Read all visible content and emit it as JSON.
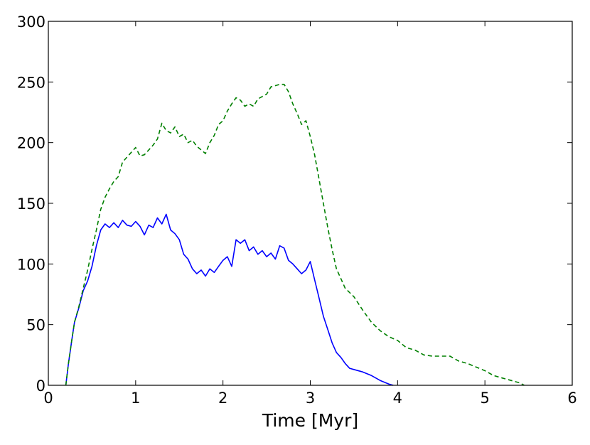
{
  "chart_data": {
    "type": "line",
    "title": "",
    "xlabel": "Time [Myr]",
    "ylabel": "",
    "xlim": [
      0,
      6
    ],
    "ylim": [
      0,
      300
    ],
    "xticks": [
      "0",
      "1",
      "2",
      "3",
      "4",
      "5",
      "6"
    ],
    "yticks": [
      "0",
      "50",
      "100",
      "150",
      "200",
      "250",
      "300"
    ],
    "grid": false,
    "legend": "none",
    "series": [
      {
        "style": "solid",
        "color": "#0000ff",
        "x": [
          0.2,
          0.23,
          0.27,
          0.3,
          0.35,
          0.4,
          0.45,
          0.5,
          0.55,
          0.6,
          0.65,
          0.7,
          0.75,
          0.8,
          0.85,
          0.9,
          0.95,
          1.0,
          1.05,
          1.1,
          1.15,
          1.2,
          1.25,
          1.3,
          1.35,
          1.4,
          1.45,
          1.5,
          1.55,
          1.6,
          1.65,
          1.7,
          1.75,
          1.8,
          1.85,
          1.9,
          1.95,
          2.0,
          2.05,
          2.1,
          2.15,
          2.2,
          2.25,
          2.3,
          2.35,
          2.4,
          2.45,
          2.5,
          2.55,
          2.6,
          2.65,
          2.7,
          2.75,
          2.8,
          2.85,
          2.9,
          2.95,
          3.0,
          3.05,
          3.1,
          3.15,
          3.2,
          3.25,
          3.3,
          3.35,
          3.4,
          3.45,
          3.5,
          3.6,
          3.7,
          3.8,
          3.9,
          3.95
        ],
        "y": [
          0,
          18,
          38,
          52,
          64,
          78,
          86,
          98,
          115,
          128,
          133,
          130,
          134,
          130,
          136,
          132,
          131,
          135,
          131,
          124,
          132,
          130,
          138,
          133,
          141,
          128,
          125,
          120,
          108,
          104,
          96,
          92,
          95,
          90,
          96,
          93,
          98,
          103,
          106,
          98,
          120,
          117,
          120,
          111,
          114,
          108,
          111,
          106,
          109,
          104,
          115,
          113,
          103,
          100,
          96,
          92,
          95,
          102,
          87,
          72,
          57,
          46,
          35,
          27,
          23,
          18,
          14,
          13,
          11,
          8,
          4,
          1,
          0
        ]
      },
      {
        "style": "dashed",
        "color": "#008000",
        "x": [
          0.2,
          0.23,
          0.27,
          0.3,
          0.35,
          0.4,
          0.45,
          0.5,
          0.55,
          0.6,
          0.65,
          0.7,
          0.75,
          0.8,
          0.85,
          0.9,
          0.95,
          1.0,
          1.05,
          1.1,
          1.15,
          1.2,
          1.25,
          1.3,
          1.35,
          1.4,
          1.45,
          1.5,
          1.55,
          1.6,
          1.65,
          1.7,
          1.75,
          1.8,
          1.85,
          1.9,
          1.95,
          2.0,
          2.05,
          2.1,
          2.15,
          2.2,
          2.25,
          2.3,
          2.35,
          2.4,
          2.45,
          2.5,
          2.55,
          2.6,
          2.65,
          2.7,
          2.75,
          2.8,
          2.85,
          2.9,
          2.95,
          3.0,
          3.05,
          3.1,
          3.15,
          3.2,
          3.25,
          3.3,
          3.35,
          3.4,
          3.5,
          3.6,
          3.7,
          3.8,
          3.9,
          4.0,
          4.1,
          4.2,
          4.3,
          4.4,
          4.5,
          4.6,
          4.7,
          4.8,
          4.9,
          5.0,
          5.1,
          5.2,
          5.3,
          5.4,
          5.45
        ],
        "y": [
          0,
          18,
          38,
          52,
          65,
          80,
          95,
          112,
          128,
          145,
          155,
          162,
          168,
          172,
          184,
          188,
          192,
          196,
          189,
          190,
          194,
          198,
          203,
          216,
          210,
          208,
          213,
          205,
          207,
          200,
          202,
          197,
          194,
          191,
          200,
          206,
          215,
          218,
          226,
          232,
          237,
          235,
          230,
          232,
          230,
          236,
          238,
          240,
          246,
          247,
          248,
          248,
          242,
          232,
          224,
          215,
          218,
          205,
          190,
          170,
          150,
          130,
          112,
          96,
          88,
          80,
          73,
          62,
          52,
          45,
          40,
          37,
          31,
          29,
          25,
          24,
          24,
          24,
          20,
          18,
          15,
          12,
          8,
          6,
          4,
          2,
          0
        ]
      }
    ]
  }
}
